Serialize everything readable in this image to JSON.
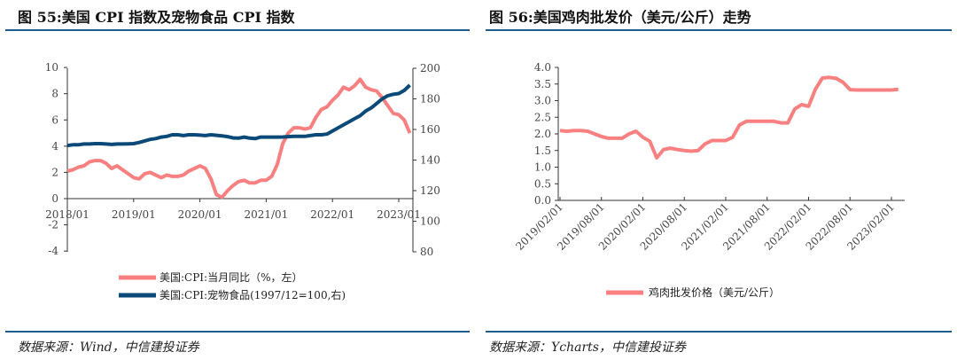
{
  "left": {
    "title": "图 55:美国 CPI 指数及宠物食品 CPI 指数",
    "source": "数据来源：Wind，中信建投证券"
  },
  "right": {
    "title": "图 56:美国鸡肉批发价（美元/公斤）走势",
    "source": "数据来源：Ycharts，中信建投证券"
  },
  "colors": {
    "accent": "#1f5c8c",
    "pink": "#f88080",
    "navy": "#0b4a78"
  },
  "chart_data": [
    {
      "type": "line",
      "x_start": "2018/01",
      "x_end": "2023/03",
      "frequency": "monthly",
      "xticks": [
        "2018/01",
        "2019/01",
        "2020/01",
        "2021/01",
        "2022/01",
        "2023/01"
      ],
      "yticks_left": [
        "10",
        "8",
        "6",
        "4",
        "2",
        "0",
        "-2",
        "-4"
      ],
      "ylim_left": [
        -4,
        10
      ],
      "yticks_right": [
        "200",
        "180",
        "160",
        "140",
        "120",
        "100",
        "80"
      ],
      "ylim_right": [
        80,
        200
      ],
      "legend_position": "bottom",
      "grid": false,
      "series": [
        {
          "name": "美国:CPI:当月同比（%，左）",
          "axis": "left",
          "color": "#f88080",
          "values": [
            2.1,
            2.2,
            2.4,
            2.5,
            2.8,
            2.9,
            2.9,
            2.7,
            2.3,
            2.5,
            2.2,
            1.9,
            1.6,
            1.5,
            1.9,
            2.0,
            1.8,
            1.6,
            1.8,
            1.7,
            1.7,
            1.8,
            2.1,
            2.3,
            2.5,
            2.3,
            1.5,
            0.3,
            0.1,
            0.6,
            1.0,
            1.3,
            1.4,
            1.2,
            1.2,
            1.4,
            1.4,
            1.7,
            2.6,
            4.2,
            5.0,
            5.4,
            5.4,
            5.3,
            5.4,
            6.2,
            6.8,
            7.0,
            7.5,
            7.9,
            8.5,
            8.3,
            8.6,
            9.1,
            8.5,
            8.3,
            8.2,
            7.7,
            7.1,
            6.5,
            6.4,
            6.0,
            5.0
          ]
        },
        {
          "name": "美国:CPI:宠物食品(1997/12=100,右)",
          "axis": "right",
          "color": "#0b4a78",
          "values": [
            149.5,
            150,
            150,
            150.5,
            150.5,
            150.7,
            150.7,
            150.5,
            150.2,
            150.5,
            150.5,
            150.6,
            150.7,
            151.5,
            152.5,
            153.5,
            154,
            155,
            155.5,
            156.5,
            156.5,
            156,
            156.5,
            156.5,
            156.3,
            156,
            156.5,
            156.2,
            155.8,
            155.3,
            154.5,
            154.3,
            155,
            154.3,
            154,
            155,
            155,
            155,
            155,
            155.1,
            155.3,
            155.5,
            155.5,
            155.5,
            156,
            156.5,
            156.5,
            157,
            159,
            161,
            163,
            165,
            167,
            169,
            172,
            174,
            177,
            180,
            182,
            183,
            183.5,
            185.5,
            189
          ]
        }
      ]
    },
    {
      "type": "line",
      "x_start": "2019/02",
      "x_end": "2023/03",
      "frequency": "monthly",
      "xticks": [
        "2019/02/01",
        "2019/08/01",
        "2020/02/01",
        "2020/08/01",
        "2021/02/01",
        "2021/08/01",
        "2022/02/01",
        "2022/08/01",
        "2023/02/01"
      ],
      "yticks": [
        "4.0",
        "3.5",
        "3.0",
        "2.5",
        "2.0",
        "1.5",
        "1.0",
        "0.5",
        "0.0"
      ],
      "ylim": [
        0,
        4
      ],
      "legend_position": "bottom",
      "grid": false,
      "series": [
        {
          "name": "鸡肉批发价格（美元/公斤）",
          "color": "#f88080",
          "values": [
            2.1,
            2.08,
            2.1,
            2.1,
            2.08,
            2.0,
            1.92,
            1.87,
            1.87,
            1.87,
            2.0,
            2.08,
            1.9,
            1.78,
            1.28,
            1.53,
            1.57,
            1.53,
            1.5,
            1.48,
            1.5,
            1.7,
            1.8,
            1.8,
            1.8,
            1.9,
            2.27,
            2.38,
            2.38,
            2.38,
            2.38,
            2.38,
            2.33,
            2.33,
            2.75,
            2.88,
            2.83,
            3.35,
            3.68,
            3.7,
            3.67,
            3.55,
            3.33,
            3.32,
            3.32,
            3.32,
            3.32,
            3.32,
            3.32,
            3.34
          ]
        }
      ]
    }
  ]
}
